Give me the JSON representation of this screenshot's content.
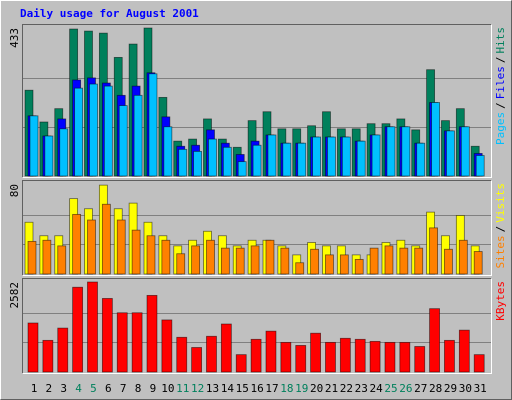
{
  "chart_data": [
    {
      "type": "bar",
      "title": "Daily usage for August 2001",
      "ylim": [
        0,
        433
      ],
      "yticks": [
        433
      ],
      "legend_separator": "/",
      "series": [
        {
          "name": "Hits",
          "color": "#00805c",
          "values": [
            251,
            158,
            197,
            430,
            424,
            418,
            347,
            386,
            433,
            230,
            102,
            108,
            167,
            108,
            84,
            162,
            188,
            138,
            138,
            147,
            188,
            138,
            138,
            153,
            153,
            167,
            135,
            311,
            162,
            197,
            87
          ]
        },
        {
          "name": "Files",
          "color": "#0000ff",
          "values": [
            176,
            117,
            167,
            281,
            287,
            272,
            236,
            263,
            302,
            173,
            87,
            90,
            135,
            96,
            63,
            102,
            120,
            96,
            96,
            114,
            114,
            114,
            102,
            120,
            144,
            144,
            96,
            215,
            132,
            144,
            66
          ]
        },
        {
          "name": "Pages",
          "color": "#00c0ff",
          "values": [
            176,
            117,
            138,
            257,
            269,
            263,
            206,
            236,
            299,
            144,
            78,
            72,
            108,
            84,
            42,
            90,
            120,
            96,
            96,
            114,
            114,
            114,
            102,
            120,
            144,
            144,
            96,
            215,
            132,
            144,
            60
          ]
        }
      ]
    },
    {
      "type": "bar",
      "ylim": [
        0,
        80
      ],
      "yticks": [
        80
      ],
      "legend_separator": "/",
      "series": [
        {
          "name": "Visits",
          "color": "#ffff00",
          "values": [
            46,
            34,
            34,
            67,
            58,
            79,
            58,
            63,
            46,
            34,
            25,
            30,
            38,
            34,
            25,
            30,
            30,
            25,
            17,
            28,
            25,
            25,
            17,
            17,
            28,
            30,
            25,
            55,
            34,
            52,
            25
          ]
        },
        {
          "name": "Sites",
          "color": "#ff8000",
          "values": [
            29,
            30,
            25,
            53,
            48,
            62,
            48,
            39,
            34,
            30,
            18,
            25,
            30,
            23,
            23,
            25,
            30,
            23,
            10,
            22,
            17,
            17,
            13,
            23,
            25,
            23,
            23,
            41,
            22,
            30,
            20
          ]
        }
      ]
    },
    {
      "type": "bar",
      "ylim": [
        0,
        2582
      ],
      "yticks": [
        2582
      ],
      "categories": [
        "1",
        "2",
        "3",
        "4",
        "5",
        "6",
        "7",
        "8",
        "9",
        "10",
        "11",
        "12",
        "13",
        "14",
        "15",
        "16",
        "17",
        "18",
        "19",
        "20",
        "21",
        "22",
        "23",
        "24",
        "25",
        "26",
        "27",
        "28",
        "29",
        "30",
        "31"
      ],
      "category_colors": [
        "#000000",
        "#000000",
        "#000000",
        "#00805c",
        "#00805c",
        "#000000",
        "#000000",
        "#000000",
        "#000000",
        "#000000",
        "#00805c",
        "#00805c",
        "#000000",
        "#000000",
        "#000000",
        "#000000",
        "#000000",
        "#00805c",
        "#00805c",
        "#000000",
        "#000000",
        "#000000",
        "#000000",
        "#000000",
        "#00805c",
        "#00805c",
        "#000000",
        "#000000",
        "#000000",
        "#000000",
        "#000000"
      ],
      "series": [
        {
          "name": "KBytes",
          "color": "#ff0000",
          "values": [
            1406,
            908,
            1260,
            2432,
            2582,
            2110,
            1699,
            1699,
            2198,
            1494,
            996,
            703,
            1025,
            1377,
            498,
            938,
            1172,
            850,
            762,
            1113,
            850,
            967,
            938,
            879,
            850,
            850,
            732,
            1817,
            908,
            1201,
            498
          ]
        }
      ]
    }
  ]
}
